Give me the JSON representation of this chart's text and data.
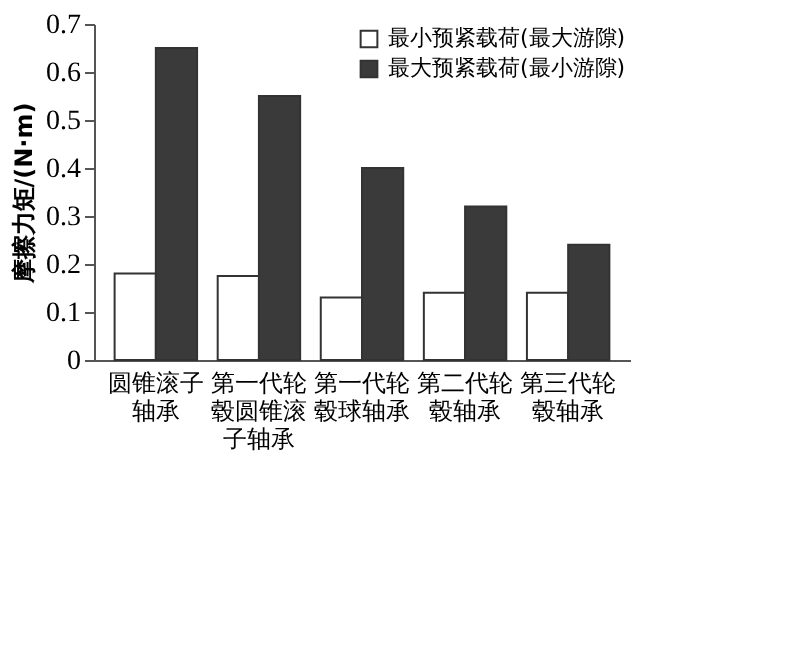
{
  "chart_data": {
    "type": "bar",
    "ylabel": "摩擦力矩/(N·m)",
    "categories": [
      "圆锥滚子轴承",
      "第一代轮毂圆锥滚子轴承",
      "第一代轮毂球轴承",
      "第二代轮毂轴承",
      "第三代轮毂轴承"
    ],
    "series": [
      {
        "name": "最小预紧载荷(最大游隙)",
        "color": "#ffffff",
        "values": [
          0.18,
          0.175,
          0.13,
          0.14,
          0.14
        ]
      },
      {
        "name": "最大预紧载荷(最小游隙)",
        "color": "#3a3a3a",
        "values": [
          0.65,
          0.55,
          0.4,
          0.32,
          0.24
        ]
      }
    ],
    "ylim": [
      0,
      0.7
    ],
    "yticks": [
      0,
      0.1,
      0.2,
      0.3,
      0.4,
      0.5,
      0.6,
      0.7
    ],
    "grid": false,
    "legend": "top right"
  }
}
